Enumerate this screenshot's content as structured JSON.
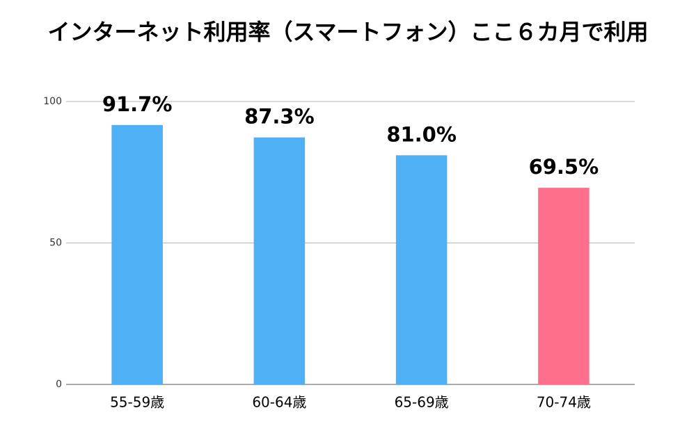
{
  "chart_data": {
    "type": "bar",
    "title": "インターネット利用率（スマートフォン）ここ６カ月で利用",
    "categories": [
      "55-59歳",
      "60-64歳",
      "65-69歳",
      "70-74歳"
    ],
    "values": [
      91.7,
      87.3,
      81.0,
      69.5
    ],
    "value_labels": [
      "91.7%",
      "87.3%",
      "81.0%",
      "69.5%"
    ],
    "colors": [
      "#4fb0f5",
      "#4fb0f5",
      "#4fb0f5",
      "#fe6e8d"
    ],
    "ylim": [
      0,
      100
    ],
    "yticks": [
      0,
      50,
      100
    ],
    "grid": true
  }
}
